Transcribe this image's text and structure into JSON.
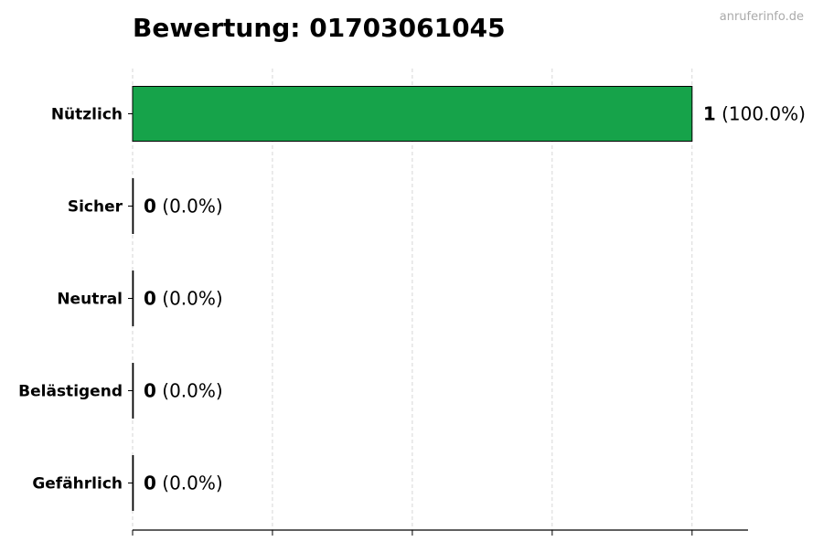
{
  "watermark": "anruferinfo.de",
  "chart_data": {
    "type": "bar",
    "orientation": "horizontal",
    "title": "Bewertung: 01703061045",
    "categories": [
      "Nützlich",
      "Sicher",
      "Neutral",
      "Belästigend",
      "Gefährlich"
    ],
    "values": [
      1,
      0,
      0,
      0,
      0
    ],
    "percent_labels": [
      "(100.0%)",
      "(0.0%)",
      "(0.0%)",
      "(0.0%)",
      "(0.0%)"
    ],
    "bar_color": "#16a34a",
    "xlim": [
      0,
      1.1
    ],
    "xticks": [
      0,
      0.25,
      0.5,
      0.75,
      1.0
    ],
    "xtick_labels_shown": false,
    "grid": "x-dashed",
    "xlabel": "",
    "ylabel": ""
  }
}
